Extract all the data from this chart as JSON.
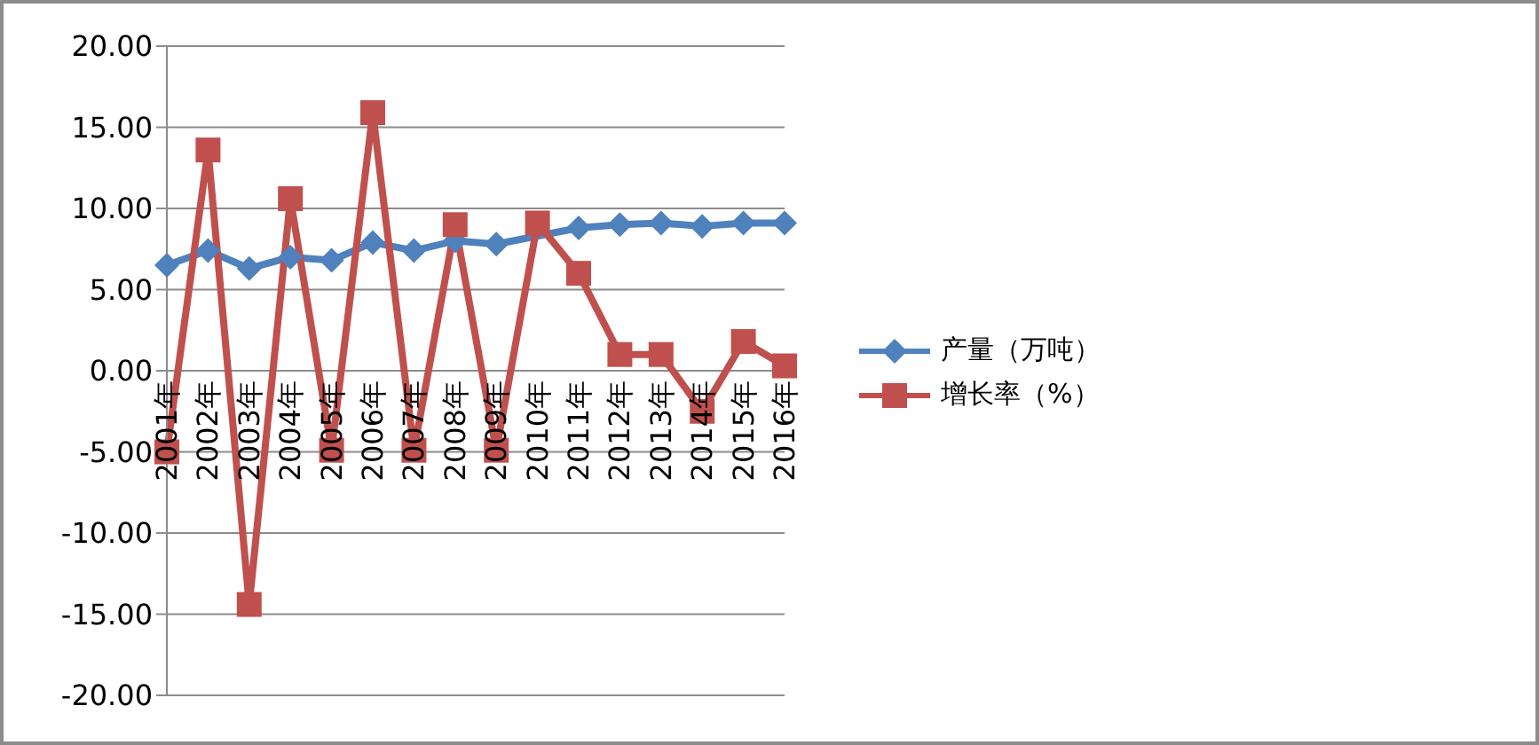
{
  "chart_data": {
    "type": "line",
    "categories": [
      "2001年",
      "2002年",
      "2003年",
      "2004年",
      "2005年",
      "2006年",
      "2007年",
      "2008年",
      "2009年",
      "2010年",
      "2011年",
      "2012年",
      "2013年",
      "2014年",
      "2015年",
      "2016年"
    ],
    "series": [
      {
        "name": "产量（万吨）",
        "color": "#4f81bd",
        "marker": "diamond",
        "values": [
          6.5,
          7.4,
          6.3,
          7.0,
          6.8,
          7.9,
          7.4,
          8.0,
          7.8,
          null,
          8.8,
          9.0,
          9.1,
          8.9,
          9.1,
          9.1
        ]
      },
      {
        "name": "增长率（%）",
        "color": "#c0504d",
        "marker": "square",
        "values": [
          -5.0,
          13.6,
          -14.4,
          10.6,
          -4.9,
          15.9,
          -4.9,
          9.0,
          -4.9,
          9.1,
          6.0,
          1.0,
          1.0,
          -2.5,
          1.8,
          0.3
        ]
      }
    ],
    "ylim": [
      -20,
      20
    ],
    "yticks": [
      {
        "value": -20,
        "label": "-20.00"
      },
      {
        "value": -15,
        "label": "-15.00"
      },
      {
        "value": -10,
        "label": "-10.00"
      },
      {
        "value": -5,
        "label": "-5.00"
      },
      {
        "value": 0,
        "label": "0.00"
      },
      {
        "value": 5,
        "label": "5.00"
      },
      {
        "value": 10,
        "label": "10.00"
      },
      {
        "value": 15,
        "label": "15.00"
      },
      {
        "value": 20,
        "label": "20.00"
      }
    ],
    "grid": "y",
    "legend": "right",
    "line_style": "solid"
  }
}
